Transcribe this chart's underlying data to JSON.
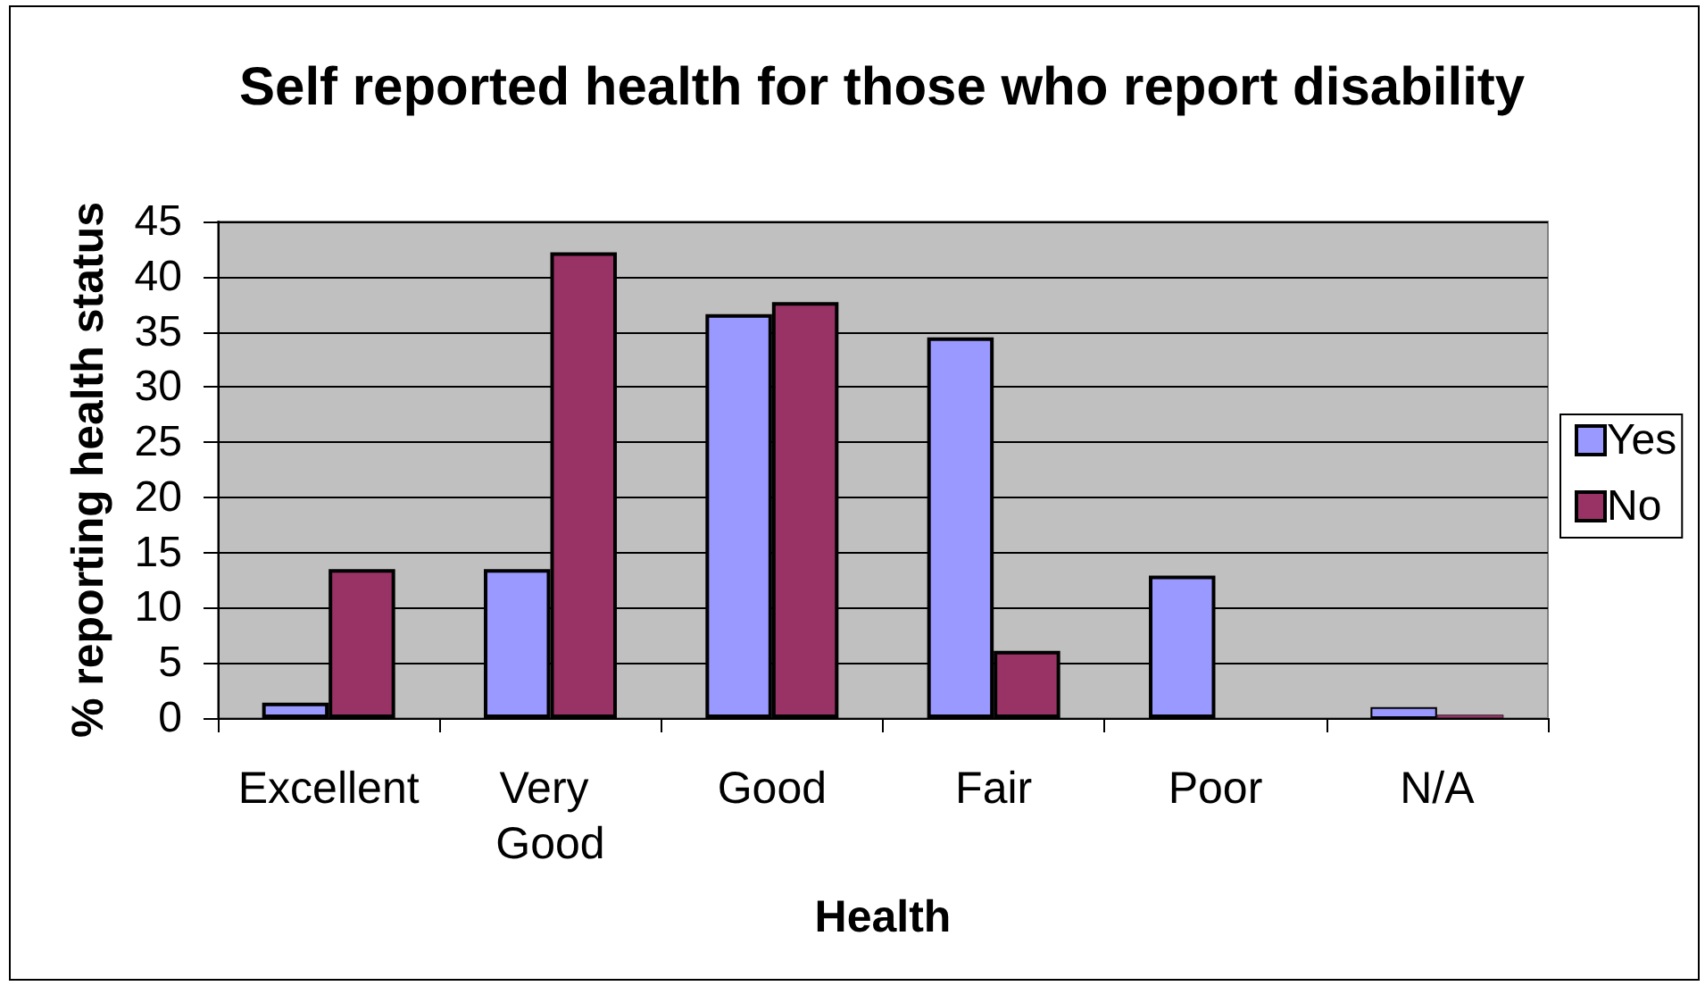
{
  "chart_data": {
    "type": "bar",
    "title": "Self reported health for those who report disability",
    "xlabel": "Health",
    "ylabel": "% reporting health status",
    "categories": [
      "Excellent",
      "Very Good",
      "Good",
      "Fair",
      "Poor",
      "N/A"
    ],
    "series": [
      {
        "name": "Yes",
        "color": "#9999ff",
        "values": [
          1.4,
          13.5,
          36.6,
          34.5,
          12.9,
          1.0
        ]
      },
      {
        "name": "No",
        "color": "#993366",
        "values": [
          13.5,
          42.2,
          37.7,
          6.1,
          null,
          0.3
        ]
      }
    ],
    "ylim": [
      0,
      45
    ],
    "yticks": [
      0,
      5,
      10,
      15,
      20,
      25,
      30,
      35,
      40,
      45
    ],
    "grid": "y",
    "legend": "right"
  }
}
